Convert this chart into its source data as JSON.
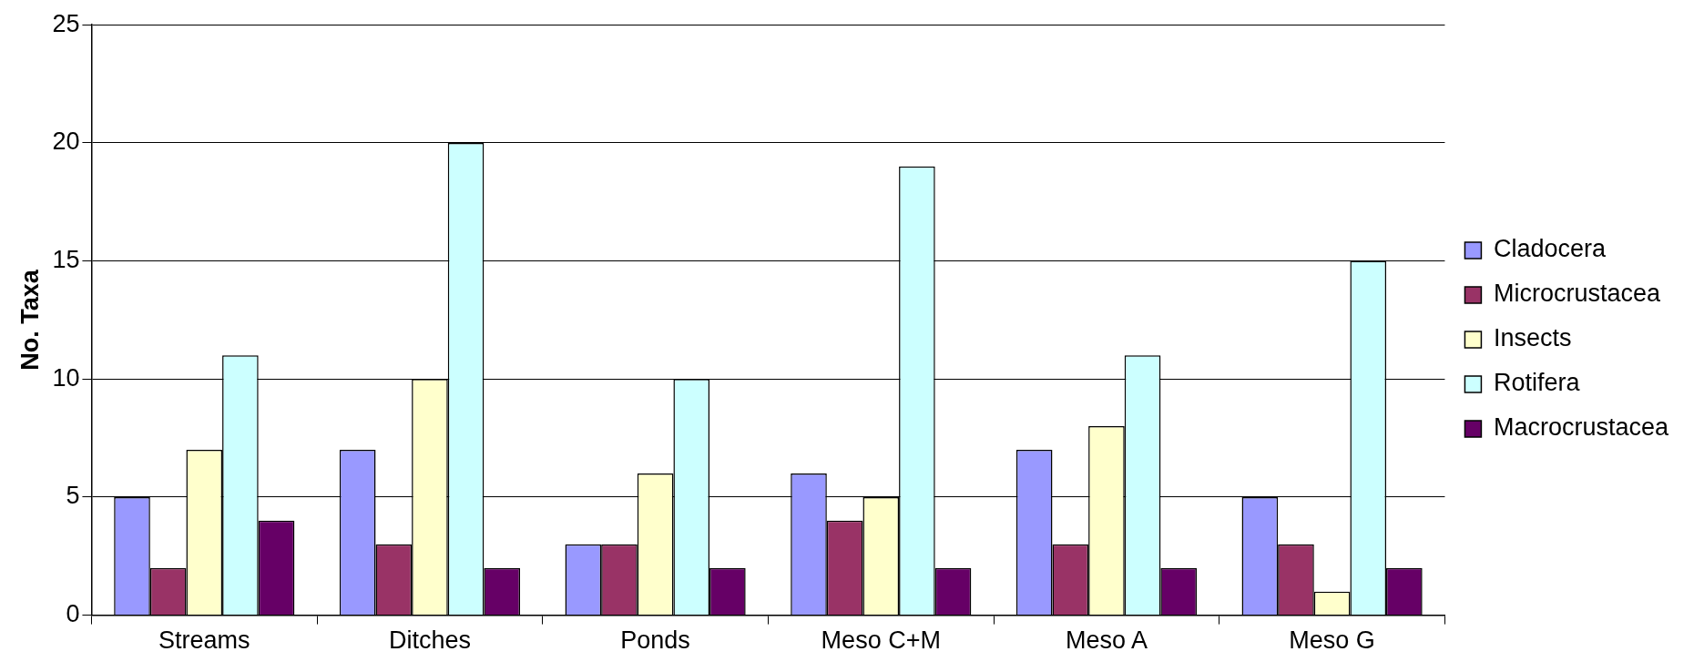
{
  "chart_data": {
    "type": "bar",
    "ylabel": "No. Taxa",
    "categories": [
      "Streams",
      "Ditches",
      "Ponds",
      "Meso C+M",
      "Meso A",
      "Meso G"
    ],
    "series": [
      {
        "name": "Cladocera",
        "color": "#9999ff",
        "values": [
          5,
          7,
          3,
          6,
          7,
          5
        ]
      },
      {
        "name": "Microcrustacea",
        "color": "#993366",
        "values": [
          2,
          3,
          3,
          4,
          3,
          3
        ]
      },
      {
        "name": "Insects",
        "color": "#ffffcc",
        "values": [
          7,
          10,
          6,
          5,
          8,
          1
        ]
      },
      {
        "name": "Rotifera",
        "color": "#ccffff",
        "values": [
          11,
          20,
          10,
          19,
          11,
          15
        ]
      },
      {
        "name": "Macrocrustacea",
        "color": "#660066",
        "values": [
          4,
          2,
          2,
          2,
          2,
          2
        ]
      }
    ],
    "ylim": [
      0,
      25
    ],
    "yticks": [
      0,
      5,
      10,
      15,
      20,
      25
    ],
    "grid": "y",
    "legend": "right"
  }
}
